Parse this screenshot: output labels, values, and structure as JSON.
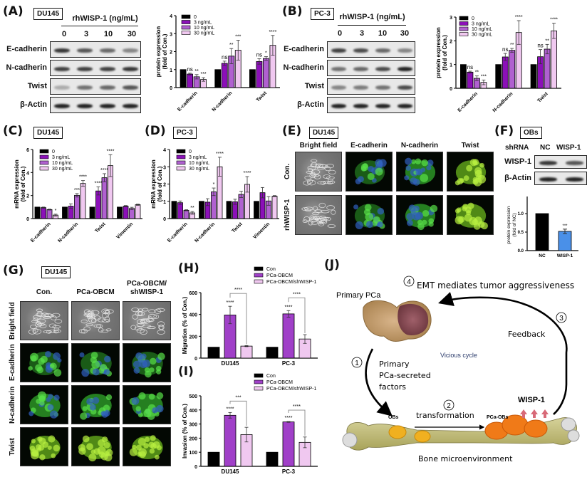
{
  "panels": {
    "A": {
      "label": "(A)",
      "cell_line": "DU145",
      "treatment_header": "rhWISP-1 (ng/mL)",
      "lanes": [
        "0",
        "3",
        "10",
        "30"
      ],
      "blot_rows": [
        "E-cadherin",
        "N-cadherin",
        "Twist",
        "β-Actin"
      ]
    },
    "B": {
      "label": "(B)",
      "cell_line": "PC-3",
      "treatment_header": "rhWISP-1 (ng/mL)",
      "lanes": [
        "0",
        "3",
        "10",
        "30"
      ],
      "blot_rows": [
        "E-cadherin",
        "N-cadherin",
        "Twist",
        "β-Actin"
      ]
    },
    "C": {
      "label": "(C)",
      "cell_line": "DU145"
    },
    "D": {
      "label": "(D)",
      "cell_line": "PC-3"
    },
    "E": {
      "label": "(E)",
      "cell_line": "DU145",
      "columns": [
        "Bright field",
        "E-cadherin",
        "N-cadherin",
        "Twist"
      ],
      "rows": [
        "Con.",
        "rhWISP-1"
      ]
    },
    "F": {
      "label": "(F)",
      "cell_line": "OBs",
      "shrna_label": "shRNA",
      "lanes": [
        "NC",
        "WISP-1"
      ],
      "blot_rows": [
        "WISP-1",
        "β-Actin"
      ]
    },
    "G": {
      "label": "(G)",
      "cell_line": "DU145",
      "columns": [
        "Con.",
        "PCa-OBCM",
        "PCa-OBCM/\nshWISP-1"
      ],
      "column_lines": [
        [
          "Con."
        ],
        [
          "PCa-OBCM"
        ],
        [
          "PCa-OBCM/",
          "shWISP-1"
        ]
      ],
      "rows": [
        "Bright field",
        "E-cadherin",
        "N-cadherin",
        "Twist"
      ]
    },
    "H": {
      "label": "(H)"
    },
    "I": {
      "label": "(I)"
    },
    "J": {
      "label": "(J)",
      "primary_pca": "Primary PCa",
      "step4": "EMT mediates tumor aggressiveness",
      "step3": "Feedback",
      "center": "Vicious cycle",
      "step1_lines": [
        "Primary",
        "PCa-secreted",
        "factors"
      ],
      "step2": "transformation",
      "obs": "OBs",
      "pca_obs": "PCa-OBs",
      "wisp1": "WISP-1",
      "bone": "Bone microenvironment",
      "numbers": [
        "1",
        "2",
        "3",
        "4"
      ]
    }
  },
  "colors": {
    "c0": "#000000",
    "c3": "#8B10B8",
    "c10": "#B060D0",
    "c30": "#F0C8F0",
    "nc": "#000000",
    "wisp_kd": "#4A90E8",
    "con": "#000000",
    "obcm": "#A040C8",
    "obcm_sh": "#F0C8F0"
  },
  "chart_data": [
    {
      "id": "A-chart",
      "type": "bar",
      "title": "",
      "ylabel": "protein expression\n(fold of Con.)",
      "ylim": [
        0,
        4
      ],
      "yticks": [
        0,
        1,
        2,
        3,
        4
      ],
      "categories": [
        "E-cadherin",
        "N-cadherin",
        "Twist"
      ],
      "legend": [
        "0",
        "3 ng/mL",
        "10 ng/mL",
        "30 ng/mL"
      ],
      "series": [
        {
          "name": "0",
          "values": [
            1.0,
            1.0,
            1.0
          ],
          "err": [
            0,
            0,
            0
          ],
          "sig": [
            "",
            "",
            ""
          ]
        },
        {
          "name": "3 ng/mL",
          "values": [
            0.75,
            1.35,
            1.45
          ],
          "err": [
            0.05,
            0.12,
            0.15
          ],
          "sig": [
            "ns",
            "ns",
            "ns"
          ]
        },
        {
          "name": "10 ng/mL",
          "values": [
            0.6,
            1.75,
            1.62
          ],
          "err": [
            0.12,
            0.42,
            0.1
          ],
          "sig": [
            "**",
            "**",
            "*"
          ]
        },
        {
          "name": "30 ng/mL",
          "values": [
            0.45,
            2.08,
            2.35
          ],
          "err": [
            0.1,
            0.55,
            0.55
          ],
          "sig": [
            "***",
            "***",
            "****"
          ]
        }
      ]
    },
    {
      "id": "B-chart",
      "type": "bar",
      "ylabel": "protein expression\n(fold of Con.)",
      "ylim": [
        0,
        3
      ],
      "yticks": [
        0,
        1,
        2,
        3
      ],
      "categories": [
        "E-cadherin",
        "N-cadherin",
        "Twist"
      ],
      "legend": [
        "0",
        "3 ng/mL",
        "10 ng/mL",
        "30 ng/mL"
      ],
      "series": [
        {
          "name": "0",
          "values": [
            1.0,
            1.0,
            1.0
          ],
          "err": [
            0,
            0,
            0
          ],
          "sig": [
            "",
            "",
            ""
          ]
        },
        {
          "name": "3 ng/mL",
          "values": [
            0.68,
            1.32,
            1.33
          ],
          "err": [
            0.04,
            0.15,
            0.3
          ],
          "sig": [
            "ns",
            "ns",
            "ns"
          ]
        },
        {
          "name": "10 ng/mL",
          "values": [
            0.42,
            1.6,
            1.65
          ],
          "err": [
            0.1,
            0.08,
            0.2
          ],
          "sig": [
            "**",
            "**",
            "**"
          ]
        },
        {
          "name": "30 ng/mL",
          "values": [
            0.25,
            2.35,
            2.42
          ],
          "err": [
            0.1,
            0.5,
            0.32
          ],
          "sig": [
            "***",
            "****",
            "****"
          ]
        }
      ]
    },
    {
      "id": "C-chart",
      "type": "bar",
      "ylabel": "mRNA expression\n(fold of Con.)",
      "ylim": [
        0,
        6
      ],
      "yticks": [
        0,
        2,
        4,
        6
      ],
      "categories": [
        "E-cadherin",
        "N-cadherin",
        "Twist",
        "Vimentin"
      ],
      "legend": [
        "0",
        "3 ng/mL",
        "10 ng/mL",
        "30 ng/mL"
      ],
      "series": [
        {
          "name": "0",
          "values": [
            1.0,
            1.0,
            1.0,
            1.0
          ],
          "err": [
            0,
            0,
            0,
            0
          ],
          "sig": [
            "",
            "",
            "",
            ""
          ]
        },
        {
          "name": "3 ng/mL",
          "values": [
            0.95,
            1.08,
            2.4,
            1.08
          ],
          "err": [
            0.05,
            0.2,
            0.35,
            0.05
          ],
          "sig": [
            "",
            "",
            "****",
            ""
          ]
        },
        {
          "name": "10 ng/mL",
          "values": [
            0.78,
            2.02,
            3.55,
            0.88
          ],
          "err": [
            0.04,
            0.15,
            0.35,
            0.1
          ],
          "sig": [
            "",
            "***",
            "****",
            ""
          ]
        },
        {
          "name": "30 ng/mL",
          "values": [
            0.3,
            3.05,
            4.6,
            1.2
          ],
          "err": [
            0.08,
            0.25,
            0.95,
            0.05
          ],
          "sig": [
            "*",
            "****",
            "****",
            ""
          ]
        }
      ]
    },
    {
      "id": "D-chart",
      "type": "bar",
      "ylabel": "mRNA expression\n(fold of Con.)",
      "ylim": [
        0,
        4
      ],
      "yticks": [
        0,
        1,
        2,
        3,
        4
      ],
      "categories": [
        "E-cadherin",
        "N-cadherin",
        "Twist",
        "Vimentin"
      ],
      "legend": [
        "0",
        "3 ng/mL",
        "10 ng/mL",
        "30 ng/mL"
      ],
      "series": [
        {
          "name": "0",
          "values": [
            1.0,
            1.0,
            1.0,
            1.0
          ],
          "err": [
            0,
            0,
            0,
            0
          ],
          "sig": [
            "",
            "",
            "",
            ""
          ]
        },
        {
          "name": "3 ng/mL",
          "values": [
            0.92,
            0.95,
            0.97,
            1.5
          ],
          "err": [
            0.1,
            0.2,
            0.15,
            0.3
          ],
          "sig": [
            "",
            "",
            "",
            ""
          ]
        },
        {
          "name": "10 ng/mL",
          "values": [
            0.48,
            1.55,
            1.4,
            1.02
          ],
          "err": [
            0.03,
            0.22,
            0.18,
            0.25
          ],
          "sig": [
            "",
            "*",
            "",
            ""
          ]
        },
        {
          "name": "30 ng/mL",
          "values": [
            0.33,
            3.0,
            1.98,
            1.3
          ],
          "err": [
            0.08,
            0.55,
            0.45,
            0.03
          ],
          "sig": [
            "**",
            "****",
            "****",
            ""
          ]
        }
      ]
    },
    {
      "id": "F-chart",
      "type": "bar",
      "ylabel": "protein expression\n(fold of NC)",
      "ylim": [
        0,
        1.0
      ],
      "yticks": [
        0.0,
        0.5,
        1.0
      ],
      "categories": [
        "NC",
        "WISP-1"
      ],
      "values": [
        1.0,
        0.52
      ],
      "err": [
        0,
        0.06
      ],
      "sig": [
        "",
        "***"
      ]
    },
    {
      "id": "H-chart",
      "type": "bar",
      "ylabel": "Migration (% of Con.)",
      "ylim": [
        0,
        600
      ],
      "yticks": [
        0,
        200,
        400,
        600
      ],
      "categories": [
        "DU145",
        "PC-3"
      ],
      "legend": [
        "Con",
        "PCa-OBCM",
        "PCa-OBCM/shWISP-1"
      ],
      "series": [
        {
          "name": "Con",
          "values": [
            100,
            100
          ],
          "err": [
            0,
            0
          ]
        },
        {
          "name": "PCa-OBCM",
          "values": [
            395,
            405
          ],
          "err": [
            80,
            30
          ],
          "sig": [
            "****",
            "****"
          ]
        },
        {
          "name": "PCa-OBCM/shWISP-1",
          "values": [
            110,
            175
          ],
          "err": [
            5,
            40
          ]
        }
      ],
      "brackets": [
        {
          "group": "DU145",
          "label": "****"
        },
        {
          "group": "PC-3",
          "label": "****"
        }
      ]
    },
    {
      "id": "I-chart",
      "type": "bar",
      "ylabel": "Invasion (% of Con.)",
      "ylim": [
        0,
        500
      ],
      "yticks": [
        0,
        100,
        200,
        300,
        400,
        500
      ],
      "categories": [
        "DU145",
        "PC-3"
      ],
      "legend": [
        "Con",
        "PCa-OBCM",
        "PCa-OBCM/shWISP-1"
      ],
      "series": [
        {
          "name": "Con",
          "values": [
            100,
            100
          ],
          "err": [
            0,
            0
          ]
        },
        {
          "name": "PCa-OBCM",
          "values": [
            362,
            315
          ],
          "err": [
            20,
            3
          ],
          "sig": [
            "****",
            "****"
          ]
        },
        {
          "name": "PCa-OBCM/shWISP-1",
          "values": [
            225,
            170
          ],
          "err": [
            52,
            38
          ]
        }
      ],
      "brackets": [
        {
          "group": "DU145",
          "label": "***"
        },
        {
          "group": "PC-3",
          "label": "****"
        }
      ]
    }
  ]
}
